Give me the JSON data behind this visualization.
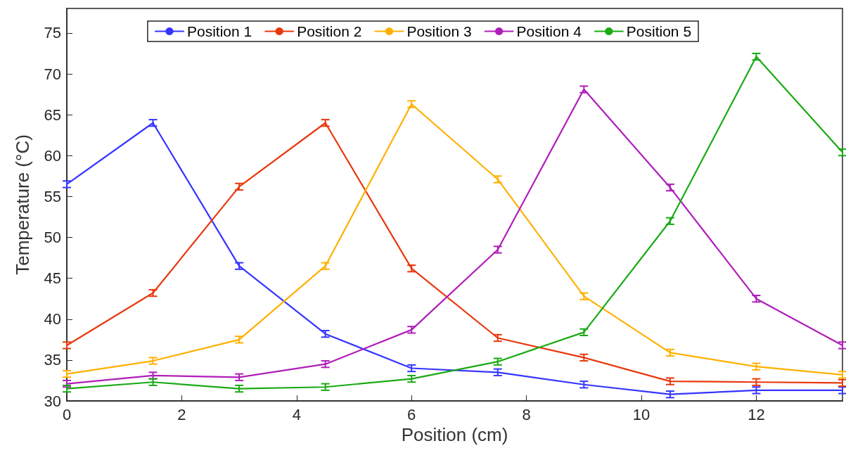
{
  "chart_data": {
    "type": "line",
    "xlabel": "Position (cm)",
    "ylabel": "Temperature (°C)",
    "x": [
      0,
      1.5,
      3,
      4.5,
      6,
      7.5,
      9,
      10.5,
      12,
      13.5
    ],
    "xlim": [
      0,
      13.5
    ],
    "xticks": [
      0,
      2,
      4,
      6,
      8,
      10,
      12
    ],
    "ylim": [
      30,
      78
    ],
    "yticks": [
      30,
      35,
      40,
      45,
      50,
      55,
      60,
      65,
      70,
      75
    ],
    "grid": false,
    "legend": "top",
    "marker": "none",
    "line_style": "solid",
    "series": [
      {
        "name": "Position 1",
        "color": "#3535ff",
        "values": [
          56.5,
          64,
          46.5,
          38.2,
          34,
          33.5,
          32,
          30.8,
          31.3,
          31.3
        ],
        "errors": [
          0.4,
          0.4,
          0.4,
          0.4,
          0.4,
          0.4,
          0.4,
          0.4,
          0.4,
          0.4
        ]
      },
      {
        "name": "Position 2",
        "color": "#e8380d",
        "values": [
          36.8,
          43.2,
          56.2,
          64,
          46.2,
          37.7,
          35.3,
          32.4,
          32.3,
          32.2
        ],
        "errors": [
          0.4,
          0.4,
          0.4,
          0.4,
          0.4,
          0.4,
          0.4,
          0.4,
          0.4,
          0.4
        ]
      },
      {
        "name": "Position 3",
        "color": "#ffb000",
        "values": [
          33.3,
          34.9,
          37.5,
          46.5,
          66.3,
          57.1,
          42.8,
          35.9,
          34.2,
          33.2
        ],
        "errors": [
          0.4,
          0.4,
          0.4,
          0.4,
          0.4,
          0.4,
          0.4,
          0.4,
          0.4,
          0.4
        ]
      },
      {
        "name": "Position 4",
        "color": "#b01eb9",
        "values": [
          32.1,
          33.1,
          32.9,
          34.5,
          38.7,
          48.5,
          68.1,
          56.1,
          42.5,
          36.8
        ],
        "errors": [
          0.4,
          0.4,
          0.4,
          0.4,
          0.4,
          0.4,
          0.4,
          0.4,
          0.4,
          0.4
        ]
      },
      {
        "name": "Position 5",
        "color": "#1aaa14",
        "values": [
          31.5,
          32.3,
          31.5,
          31.7,
          32.7,
          34.8,
          38.4,
          52,
          72.1,
          60.4
        ],
        "errors": [
          0.4,
          0.4,
          0.4,
          0.4,
          0.4,
          0.4,
          0.4,
          0.4,
          0.4,
          0.4
        ]
      }
    ]
  }
}
